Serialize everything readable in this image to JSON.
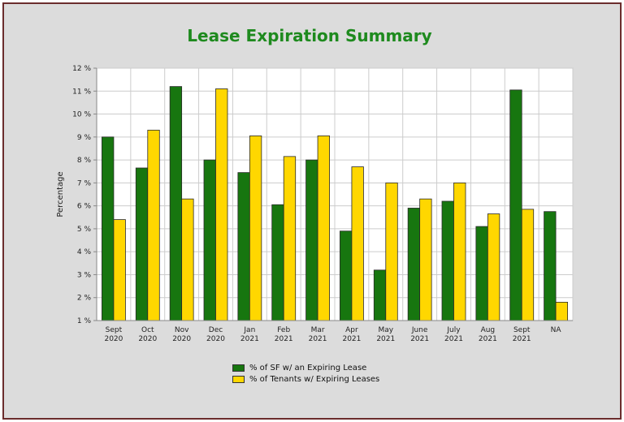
{
  "colors": {
    "title": "#1e8a1e",
    "series_sf": "#17760f",
    "series_tenants": "#ffd700",
    "plot_bg": "#ffffff",
    "frame_bg": "#dcdcdc",
    "border": "#6b2d2d"
  },
  "chart_data": {
    "type": "bar",
    "title": "Lease Expiration Summary",
    "xlabel": "",
    "ylabel": "Percentage",
    "ylim": [
      1,
      12
    ],
    "y_ticks": [
      "1 %",
      "2 %",
      "3 %",
      "4 %",
      "5 %",
      "6 %",
      "7 %",
      "8 %",
      "9 %",
      "10 %",
      "11 %",
      "12 %"
    ],
    "grid": true,
    "legend_position": "bottom-center",
    "categories": [
      [
        "Sept",
        "2020"
      ],
      [
        "Oct",
        "2020"
      ],
      [
        "Nov",
        "2020"
      ],
      [
        "Dec",
        "2020"
      ],
      [
        "Jan",
        "2021"
      ],
      [
        "Feb",
        "2021"
      ],
      [
        "Mar",
        "2021"
      ],
      [
        "Apr",
        "2021"
      ],
      [
        "May",
        "2021"
      ],
      [
        "June",
        "2021"
      ],
      [
        "July",
        "2021"
      ],
      [
        "Aug",
        "2021"
      ],
      [
        "Sept",
        "2021"
      ],
      [
        "NA"
      ]
    ],
    "series": [
      {
        "name": "% of SF w/ an Expiring Lease",
        "color": "#17760f",
        "values": [
          9.0,
          7.65,
          11.2,
          8.0,
          7.45,
          6.05,
          8.0,
          4.9,
          3.2,
          5.9,
          6.2,
          5.1,
          11.05,
          5.75
        ]
      },
      {
        "name": "% of Tenants w/ Expiring Leases",
        "color": "#ffd700",
        "values": [
          5.4,
          9.3,
          6.3,
          11.1,
          9.05,
          8.15,
          9.05,
          7.7,
          7.0,
          6.3,
          7.0,
          5.65,
          5.85,
          1.8
        ]
      }
    ]
  }
}
